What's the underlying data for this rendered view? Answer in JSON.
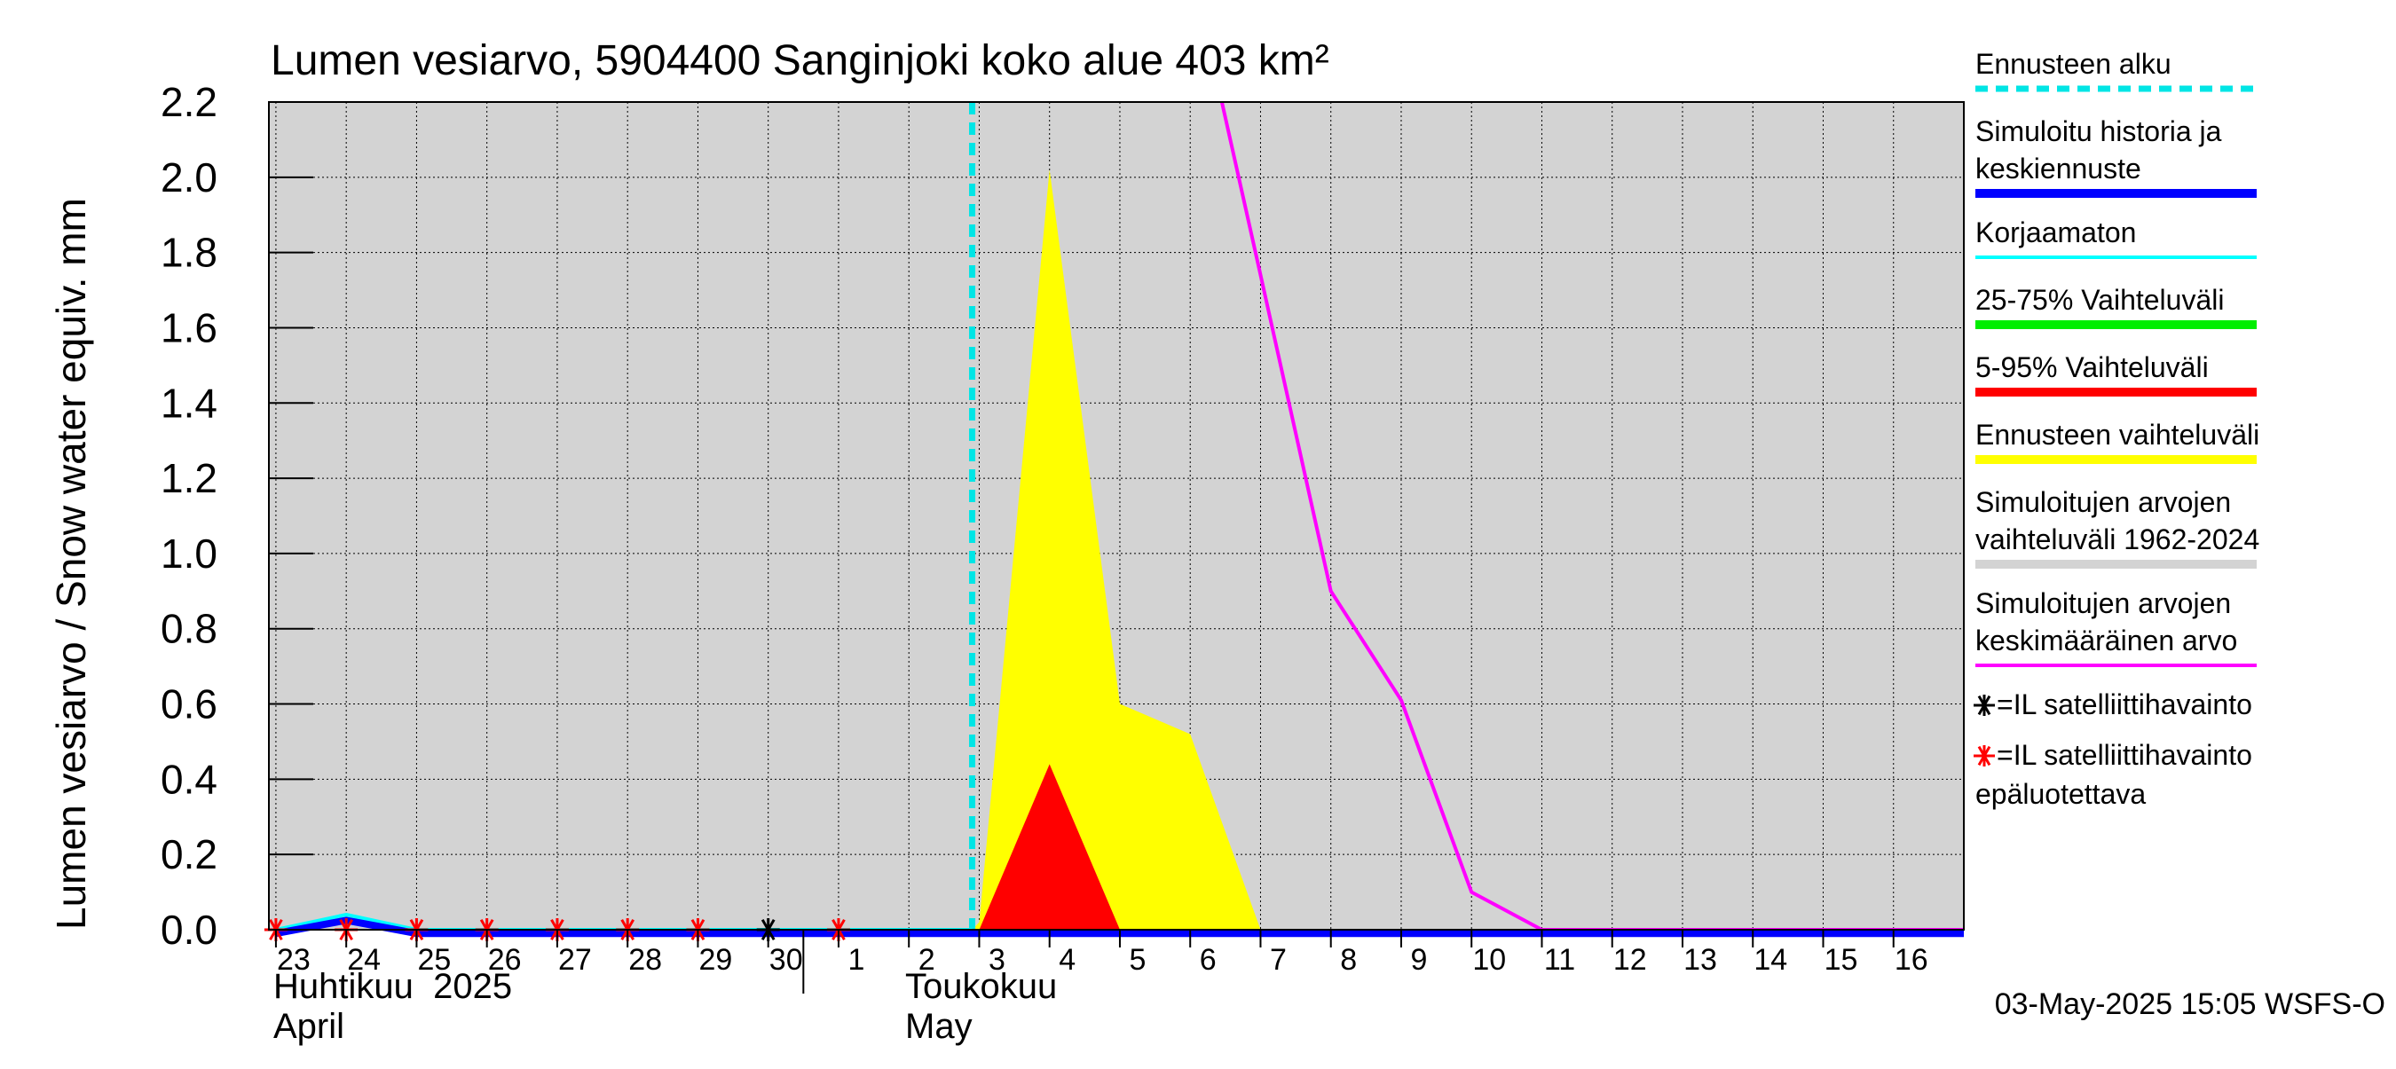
{
  "chart_data": {
    "type": "line",
    "title": "Lumen vesiarvo, 5904400 Sanginjoki koko alue 403 km²",
    "ylabel": "Lumen vesiarvo / Snow water equiv.    mm",
    "ylim": [
      0,
      2.2
    ],
    "yticks": [
      "0.0",
      "0.2",
      "0.4",
      "0.6",
      "0.8",
      "1.0",
      "1.2",
      "1.4",
      "1.6",
      "1.8",
      "2.0",
      "2.2"
    ],
    "ytick_values": [
      0,
      0.2,
      0.4,
      0.6,
      0.8,
      1.0,
      1.2,
      1.4,
      1.6,
      1.8,
      2.0,
      2.2
    ],
    "x_day_range": [
      -0.1,
      24.0
    ],
    "day_ticks": [
      {
        "d": 0,
        "label": "23"
      },
      {
        "d": 1,
        "label": "24"
      },
      {
        "d": 2,
        "label": "25"
      },
      {
        "d": 3,
        "label": "26"
      },
      {
        "d": 4,
        "label": "27"
      },
      {
        "d": 5,
        "label": "28"
      },
      {
        "d": 6,
        "label": "29"
      },
      {
        "d": 7,
        "label": "30"
      },
      {
        "d": 8,
        "label": "1"
      },
      {
        "d": 9,
        "label": "2"
      },
      {
        "d": 10,
        "label": "3"
      },
      {
        "d": 11,
        "label": "4"
      },
      {
        "d": 12,
        "label": "5"
      },
      {
        "d": 13,
        "label": "6"
      },
      {
        "d": 14,
        "label": "7"
      },
      {
        "d": 15,
        "label": "8"
      },
      {
        "d": 16,
        "label": "9"
      },
      {
        "d": 17,
        "label": "10"
      },
      {
        "d": 18,
        "label": "11"
      },
      {
        "d": 19,
        "label": "12"
      },
      {
        "d": 20,
        "label": "13"
      },
      {
        "d": 21,
        "label": "14"
      },
      {
        "d": 22,
        "label": "15"
      },
      {
        "d": 23,
        "label": "16"
      }
    ],
    "month_april_fi": "Huhtikuu  2025",
    "month_april_en": "April",
    "month_may_fi": "Toukokuu",
    "month_may_en": "May",
    "month_boundary_day": 7.5,
    "forecast_start_day": 9.9,
    "series": [
      {
        "name": "Ennusteen vaihteluväli",
        "color": "#ffff00",
        "type": "band",
        "points": [
          [
            9.9,
            0
          ],
          [
            10.0,
            0.02
          ],
          [
            11.0,
            2.02
          ],
          [
            12.0,
            0.6
          ],
          [
            13.0,
            0.52
          ],
          [
            14.0,
            0
          ],
          [
            9.9,
            0
          ]
        ]
      },
      {
        "name": "5-95% Vaihteluväli",
        "color": "#ff0000",
        "type": "band",
        "points": [
          [
            10.0,
            0
          ],
          [
            11.0,
            0.44
          ],
          [
            12.0,
            0
          ],
          [
            10.0,
            0
          ]
        ]
      },
      {
        "name": "Simuloitujen arvojen keskimääräinen arvo",
        "color": "#ff00ff",
        "type": "line",
        "points": [
          [
            13.45,
            2.2
          ],
          [
            14.0,
            1.74
          ],
          [
            15.0,
            0.9
          ],
          [
            16.0,
            0.61
          ],
          [
            17.0,
            0.1
          ],
          [
            18.0,
            0.0
          ],
          [
            24.0,
            0.0
          ]
        ]
      },
      {
        "name": "Korjaamaton",
        "color": "#00ffff",
        "type": "line",
        "points": [
          [
            0,
            0.0
          ],
          [
            1,
            0.04
          ],
          [
            2,
            0.0
          ],
          [
            7,
            0.0
          ],
          [
            9.9,
            0.0
          ]
        ]
      },
      {
        "name": "Simuloitu historia ja keskiennuste",
        "color": "#0000ff",
        "type": "line",
        "points": [
          [
            0,
            -0.01
          ],
          [
            1,
            0.025
          ],
          [
            2,
            -0.01
          ],
          [
            7,
            -0.01
          ],
          [
            24,
            -0.01
          ]
        ]
      }
    ],
    "satellite_unreliable_days": [
      0,
      1,
      2,
      3,
      4,
      5,
      6,
      8
    ],
    "satellite_reliable_days": [
      7
    ],
    "legend": [
      {
        "lines": [
          "Ennusteen alku"
        ],
        "color": "#00e5e5",
        "style": "dashed"
      },
      {
        "lines": [
          "Simuloitu historia ja",
          "keskiennuste"
        ],
        "color": "#0000ff",
        "style": "thick"
      },
      {
        "lines": [
          "Korjaamaton"
        ],
        "color": "#00ffff",
        "style": "solid"
      },
      {
        "lines": [
          "25-75% Vaihteluväli"
        ],
        "color": "#00ee00",
        "style": "thick"
      },
      {
        "lines": [
          "5-95% Vaihteluväli"
        ],
        "color": "#ff0000",
        "style": "thick"
      },
      {
        "lines": [
          "Ennusteen vaihteluväli"
        ],
        "color": "#ffff00",
        "style": "thick"
      },
      {
        "lines": [
          "Simuloitujen arvojen",
          "vaihteluväli 1962-2024"
        ],
        "color": "#d3d3d3",
        "style": "thick"
      },
      {
        "lines": [
          "Simuloitujen arvojen",
          "keskimääräinen arvo"
        ],
        "color": "#ff00ff",
        "style": "solid"
      }
    ],
    "legend_markers": [
      {
        "lines": [
          "=IL satelliittihavainto"
        ],
        "color": "#000000"
      },
      {
        "lines": [
          "=IL satelliittihavainto",
          "epäluotettava"
        ],
        "color": "#ff0000"
      }
    ],
    "timestamp": "03-May-2025 15:05 WSFS-O"
  }
}
